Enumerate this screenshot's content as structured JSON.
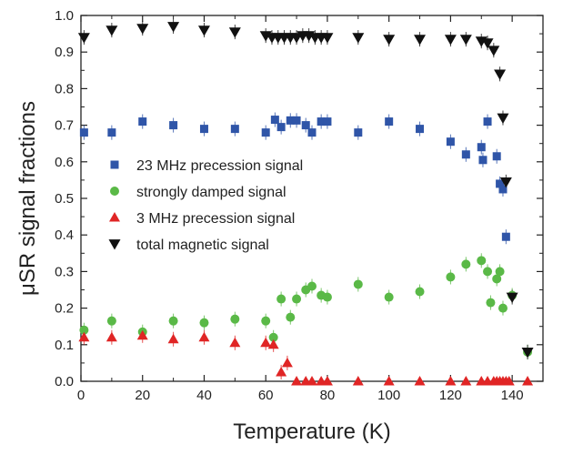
{
  "chart_data": {
    "type": "scatter",
    "title": "",
    "xlabel": "Temperature (K)",
    "ylabel": "μSR signal fractions",
    "xlim": [
      0,
      150
    ],
    "ylim": [
      0,
      1.0
    ],
    "xticks": [
      0,
      20,
      40,
      60,
      80,
      100,
      120,
      140
    ],
    "yticks": [
      0.0,
      0.1,
      0.2,
      0.3,
      0.4,
      0.5,
      0.6,
      0.7,
      0.8,
      0.9,
      1.0
    ],
    "ytick_labels": [
      "0.0",
      "0.1",
      "0.2",
      "0.3",
      "0.4",
      "0.5",
      "0.6",
      "0.7",
      "0.8",
      "0.9",
      "1.0"
    ],
    "grid": false,
    "legend_position": "center-left",
    "series": [
      {
        "name": "23 MHz precession signal",
        "marker": "square",
        "color": "#2f55a8",
        "x": [
          1,
          10,
          20,
          30,
          40,
          50,
          60,
          63,
          65,
          68,
          70,
          73,
          75,
          78,
          80,
          90,
          100,
          110,
          120,
          125,
          130,
          130.5,
          132,
          135,
          136,
          137,
          138
        ],
        "y": [
          0.68,
          0.68,
          0.71,
          0.7,
          0.69,
          0.69,
          0.68,
          0.715,
          0.695,
          0.713,
          0.713,
          0.7,
          0.68,
          0.71,
          0.71,
          0.68,
          0.71,
          0.69,
          0.655,
          0.62,
          0.64,
          0.605,
          0.71,
          0.615,
          0.54,
          0.525,
          0.395
        ]
      },
      {
        "name": "strongly damped   signal",
        "marker": "circle",
        "color": "#5ab947",
        "x": [
          1,
          10,
          20,
          30,
          40,
          50,
          60,
          62.5,
          65,
          68,
          70,
          73,
          75,
          78,
          80,
          90,
          100,
          110,
          120,
          125,
          130,
          132,
          133,
          135,
          136,
          137,
          140,
          145
        ],
        "y": [
          0.14,
          0.165,
          0.135,
          0.165,
          0.16,
          0.17,
          0.165,
          0.12,
          0.225,
          0.175,
          0.225,
          0.25,
          0.26,
          0.235,
          0.23,
          0.265,
          0.23,
          0.245,
          0.285,
          0.32,
          0.33,
          0.3,
          0.215,
          0.28,
          0.3,
          0.2,
          0.235,
          0.08
        ]
      },
      {
        "name": "3 MHz precession signal",
        "marker": "triangle-up",
        "color": "#e02525",
        "x": [
          1,
          10,
          20,
          30,
          40,
          50,
          60,
          62.5,
          65,
          67,
          70,
          73,
          75,
          78,
          80,
          90,
          100,
          110,
          120,
          125,
          130,
          132,
          134,
          135,
          136,
          137,
          138,
          139,
          145
        ],
        "y": [
          0.12,
          0.12,
          0.125,
          0.115,
          0.12,
          0.105,
          0.105,
          0.1,
          0.025,
          0.05,
          0.0,
          0.0,
          0.0,
          0.0,
          0.0,
          0.0,
          0.0,
          0.0,
          0.0,
          0.0,
          0.0,
          0.0,
          0.0,
          0.0,
          0.0,
          0.0,
          0.0,
          0.0,
          0.0
        ]
      },
      {
        "name": "total magnetic signal",
        "marker": "triangle-down",
        "color": "#111111",
        "x": [
          1,
          10,
          20,
          30,
          40,
          50,
          60,
          62,
          64,
          66,
          68,
          70,
          72,
          74,
          76,
          78,
          80,
          90,
          100,
          110,
          120,
          125,
          130,
          132,
          134,
          136,
          137,
          138,
          140,
          145
        ],
        "y": [
          0.94,
          0.96,
          0.965,
          0.97,
          0.96,
          0.955,
          0.945,
          0.94,
          0.94,
          0.94,
          0.94,
          0.94,
          0.945,
          0.945,
          0.94,
          0.94,
          0.94,
          0.94,
          0.935,
          0.935,
          0.935,
          0.935,
          0.93,
          0.925,
          0.905,
          0.84,
          0.72,
          0.545,
          0.23,
          0.08
        ]
      }
    ]
  }
}
